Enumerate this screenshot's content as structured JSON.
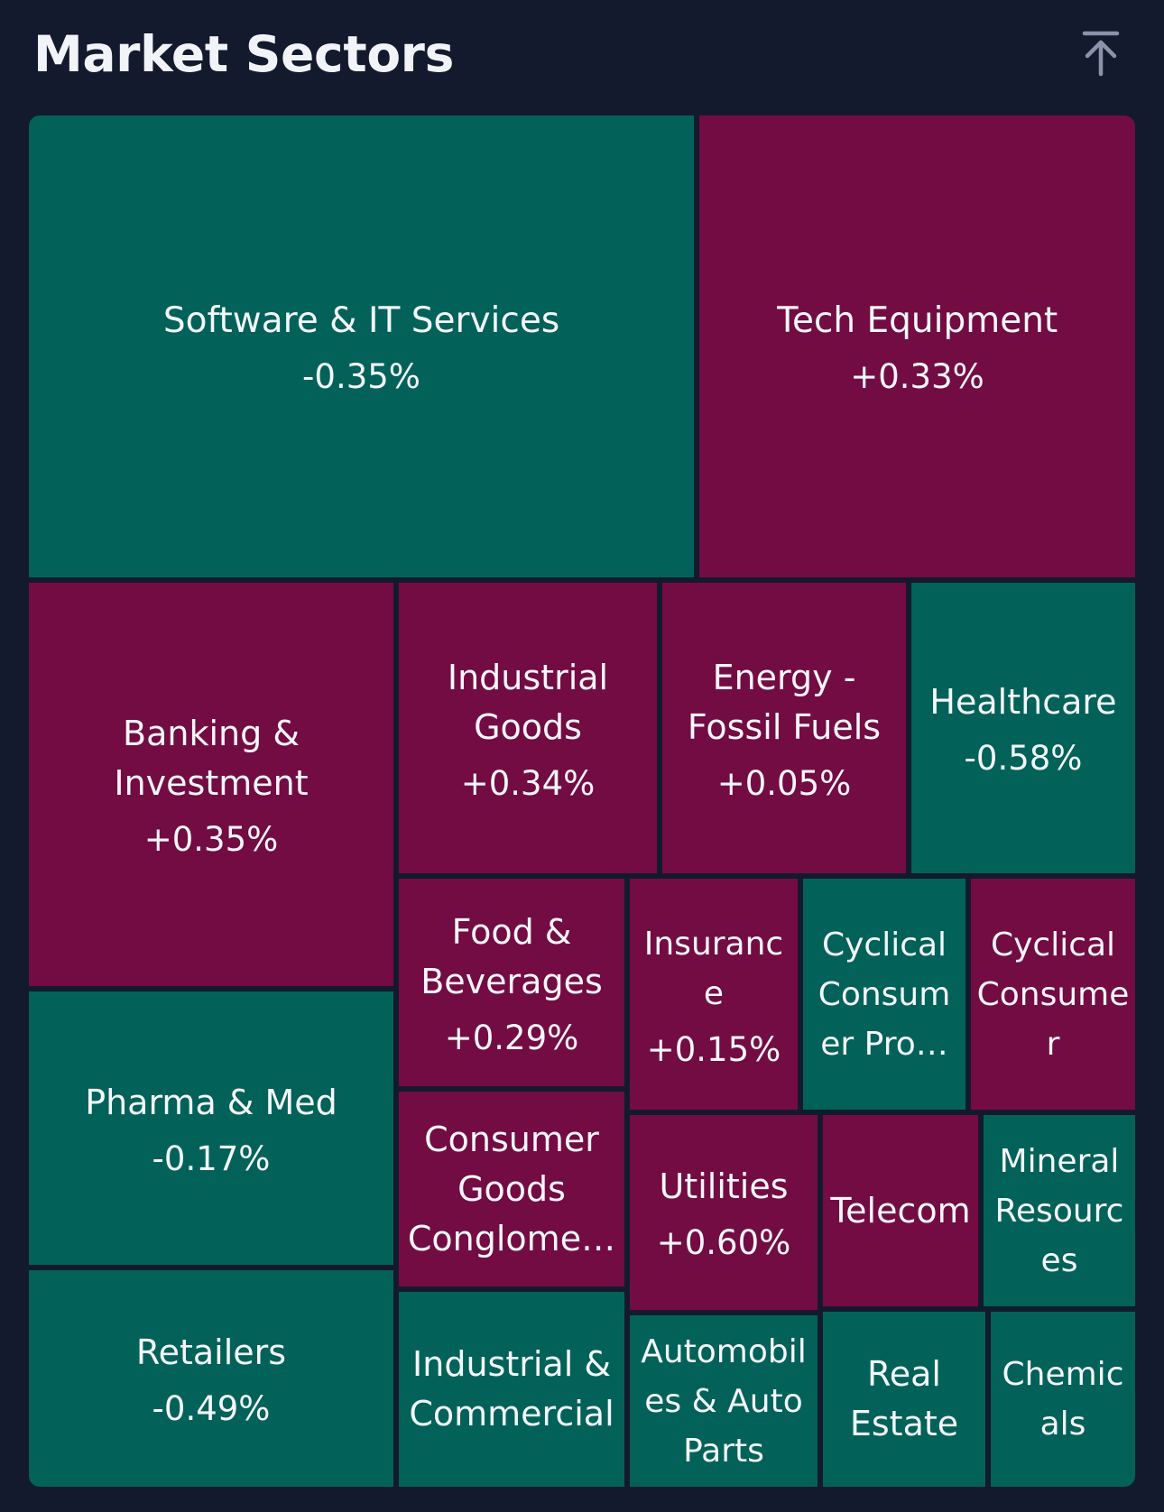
{
  "header": {
    "title": "Market Sectors",
    "scroll_top_icon": "arrow-up-to-line-icon"
  },
  "colors": {
    "background": "#131a2e",
    "positive": "#730c43",
    "negative": "#026259",
    "text": "#f4f6fa"
  },
  "sectors": [
    {
      "name": "Software & IT Services",
      "change": "-0.35%"
    },
    {
      "name": "Tech Equipment",
      "change": "+0.33%"
    },
    {
      "name": "Banking & Investment",
      "change": "+0.35%"
    },
    {
      "name": "Industrial Goods",
      "change": "+0.34%"
    },
    {
      "name": "Energy - Fossil Fuels",
      "change": "+0.05%"
    },
    {
      "name": "Healthcare",
      "change": "-0.58%"
    },
    {
      "name": "Pharma & Med",
      "change": "-0.17%"
    },
    {
      "name": "Retailers",
      "change": "-0.49%"
    },
    {
      "name": "Food & Beverages",
      "change": "+0.29%"
    },
    {
      "name": "Insurance",
      "change": "+0.15%"
    },
    {
      "name": "Cyclical Consumer Pro…",
      "change": ""
    },
    {
      "name": "Cyclical Consumer",
      "change": ""
    },
    {
      "name": "Consumer Goods Conglome…",
      "change": ""
    },
    {
      "name": "Utilities",
      "change": "+0.60%"
    },
    {
      "name": "Telecom",
      "change": ""
    },
    {
      "name": "Mineral Resources",
      "change": ""
    },
    {
      "name": "Industrial & Commercial",
      "change": ""
    },
    {
      "name": "Automobiles & Auto Parts",
      "change": ""
    },
    {
      "name": "Real Estate",
      "change": ""
    },
    {
      "name": "Chemicals",
      "change": ""
    }
  ]
}
